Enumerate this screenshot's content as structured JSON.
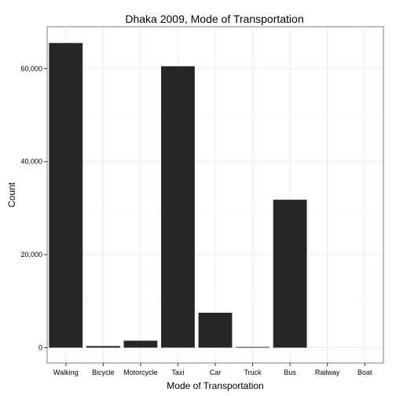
{
  "chart_data": {
    "type": "bar",
    "title": "Dhaka 2009, Mode of Transportation",
    "xlabel": "Mode of Transportation",
    "ylabel": "Count",
    "categories": [
      "Walking",
      "Bicycle",
      "Motorcycle",
      "Taxi",
      "Car",
      "Truck",
      "Bus",
      "Railway",
      "Boat"
    ],
    "values": [
      65500,
      350,
      1500,
      60500,
      7500,
      150,
      31800,
      0,
      0
    ],
    "ylim": [
      -3300,
      69000
    ],
    "yticks": [
      0,
      20000,
      40000,
      60000
    ],
    "ytick_labels": [
      "0",
      "20,000",
      "40,000",
      "60,000"
    ],
    "grid": true,
    "colors": {
      "bar": "#262626",
      "grid_major": "#ebebeb",
      "grid_minor": "#f5f5f5",
      "panel_border": "#7f7f7f"
    }
  }
}
